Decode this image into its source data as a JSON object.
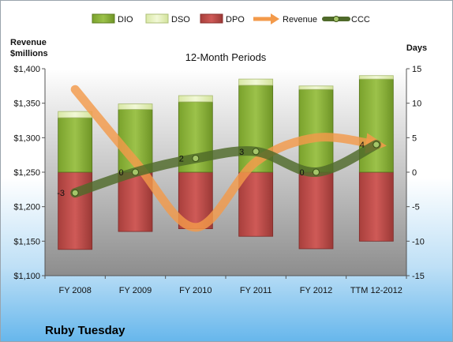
{
  "company_name": "Ruby Tuesday",
  "colors": {
    "dio": "#8bb33a",
    "dso": "#e4f0b8",
    "dpo": "#c0504d",
    "revenue": "#f39a4a",
    "ccc": "#4f6a2a"
  },
  "chart_data": {
    "type": "bar",
    "title": "12-Month Periods",
    "ylabel": "Revenue $millions",
    "ylabel_lines": [
      "Revenue",
      "$millions"
    ],
    "y2label": "Days",
    "categories": [
      "FY 2008",
      "FY 2009",
      "FY 2010",
      "FY 2011",
      "FY 2012",
      "TTM 12-2012"
    ],
    "ylim": [
      1100,
      1400
    ],
    "y_ticks": [
      "$1,100",
      "$1,150",
      "$1,200",
      "$1,250",
      "$1,300",
      "$1,350",
      "$1,400"
    ],
    "y2lim": [
      -15,
      15
    ],
    "y2_ticks": [
      "-15",
      "-10",
      "-5",
      "0",
      "5",
      "10",
      "15"
    ],
    "legend": [
      "DIO",
      "DSO",
      "DPO",
      "Revenue",
      "CCC"
    ],
    "legend_position": "top",
    "series": [
      {
        "name": "DIO",
        "type": "stacked-bar",
        "axis": "days",
        "values": [
          7.9,
          9.1,
          10.2,
          12.6,
          12.0,
          13.5
        ]
      },
      {
        "name": "DSO",
        "type": "stacked-bar",
        "axis": "days",
        "values": [
          0.9,
          0.8,
          0.9,
          0.9,
          0.5,
          0.5
        ]
      },
      {
        "name": "DPO",
        "type": "stacked-bar",
        "axis": "days",
        "values": [
          -11.2,
          -8.6,
          -8.2,
          -9.3,
          -11.1,
          -10.0
        ]
      },
      {
        "name": "Revenue",
        "type": "line",
        "axis": "revenue",
        "values": [
          1370,
          1265,
          1170,
          1265,
          1300,
          1290
        ]
      },
      {
        "name": "CCC",
        "type": "line",
        "axis": "days",
        "values": [
          -3,
          0,
          2,
          3,
          0,
          4
        ]
      }
    ],
    "ccc_labels": [
      "-3",
      "0",
      "2",
      "3",
      "0",
      "4"
    ]
  }
}
